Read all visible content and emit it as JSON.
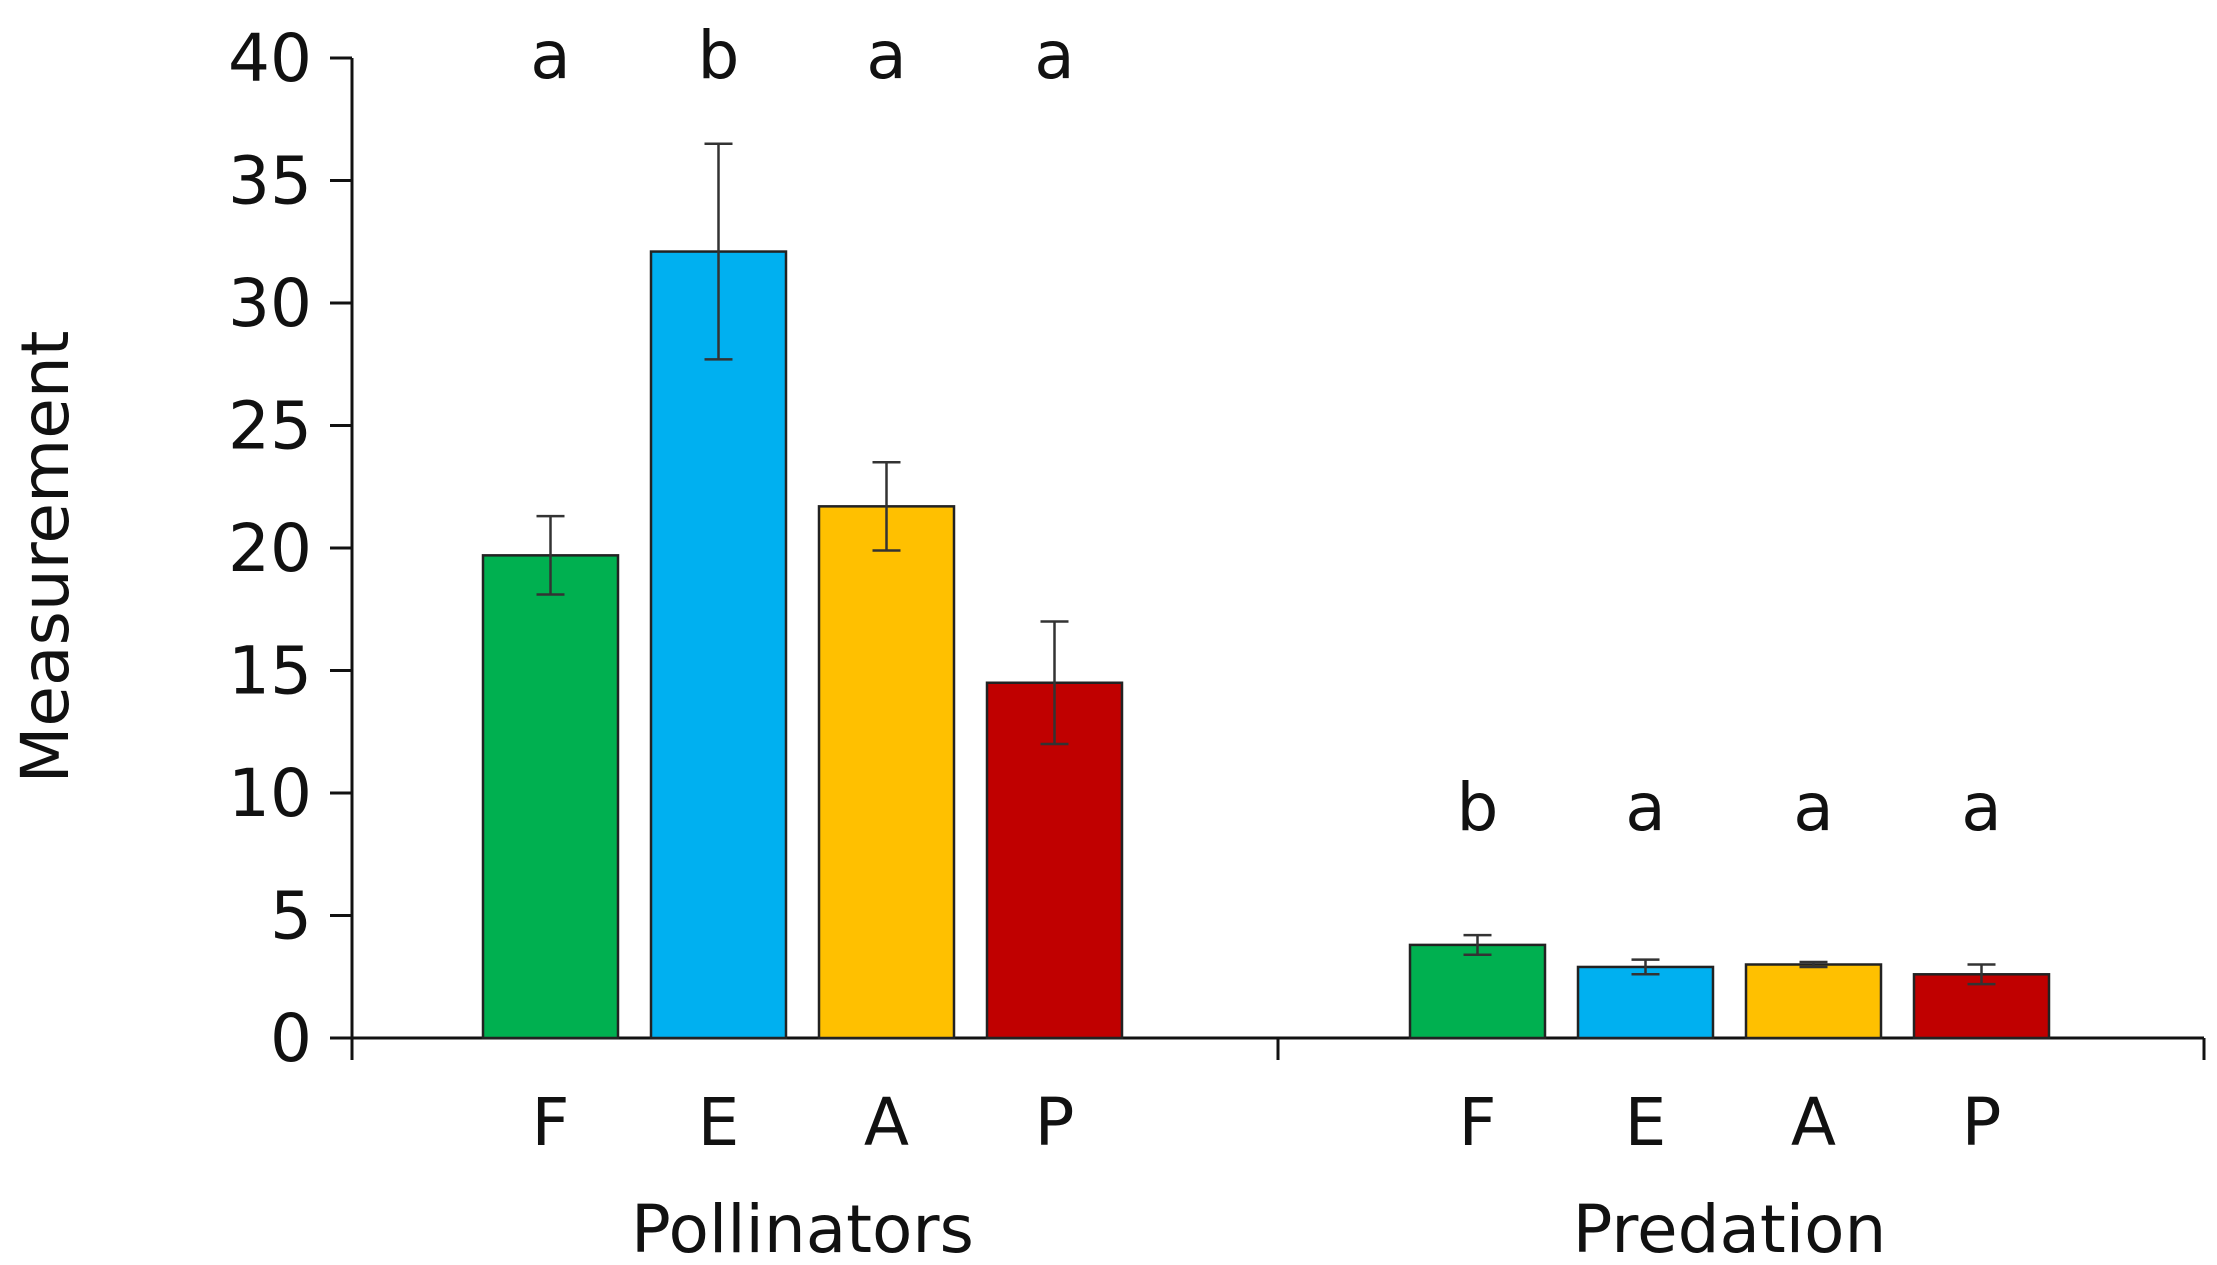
{
  "chart_data": {
    "type": "bar",
    "ylabel": "Measurement",
    "ylim": [
      0,
      40
    ],
    "yticks": [
      "0",
      "5",
      "10",
      "15",
      "20",
      "25",
      "30",
      "35",
      "40"
    ],
    "groups": [
      {
        "name": "Pollinators",
        "bars": [
          {
            "category": "F",
            "value": 19.7,
            "error": 1.6,
            "letter": "a",
            "color": "#00b050"
          },
          {
            "category": "E",
            "value": 32.1,
            "error": 4.4,
            "letter": "b",
            "color": "#00b0f0"
          },
          {
            "category": "A",
            "value": 21.7,
            "error": 1.8,
            "letter": "a",
            "color": "#ffc000"
          },
          {
            "category": "P",
            "value": 14.5,
            "error": 2.5,
            "letter": "a",
            "color": "#c00000"
          }
        ]
      },
      {
        "name": "Predation",
        "bars": [
          {
            "category": "F",
            "value": 3.8,
            "error": 0.4,
            "letter": "b",
            "color": "#00b050"
          },
          {
            "category": "E",
            "value": 2.9,
            "error": 0.3,
            "letter": "a",
            "color": "#00b0f0"
          },
          {
            "category": "A",
            "value": 3.0,
            "error": 0.1,
            "letter": "a",
            "color": "#ffc000"
          },
          {
            "category": "P",
            "value": 2.6,
            "error": 0.4,
            "letter": "a",
            "color": "#c00000"
          }
        ]
      }
    ]
  }
}
